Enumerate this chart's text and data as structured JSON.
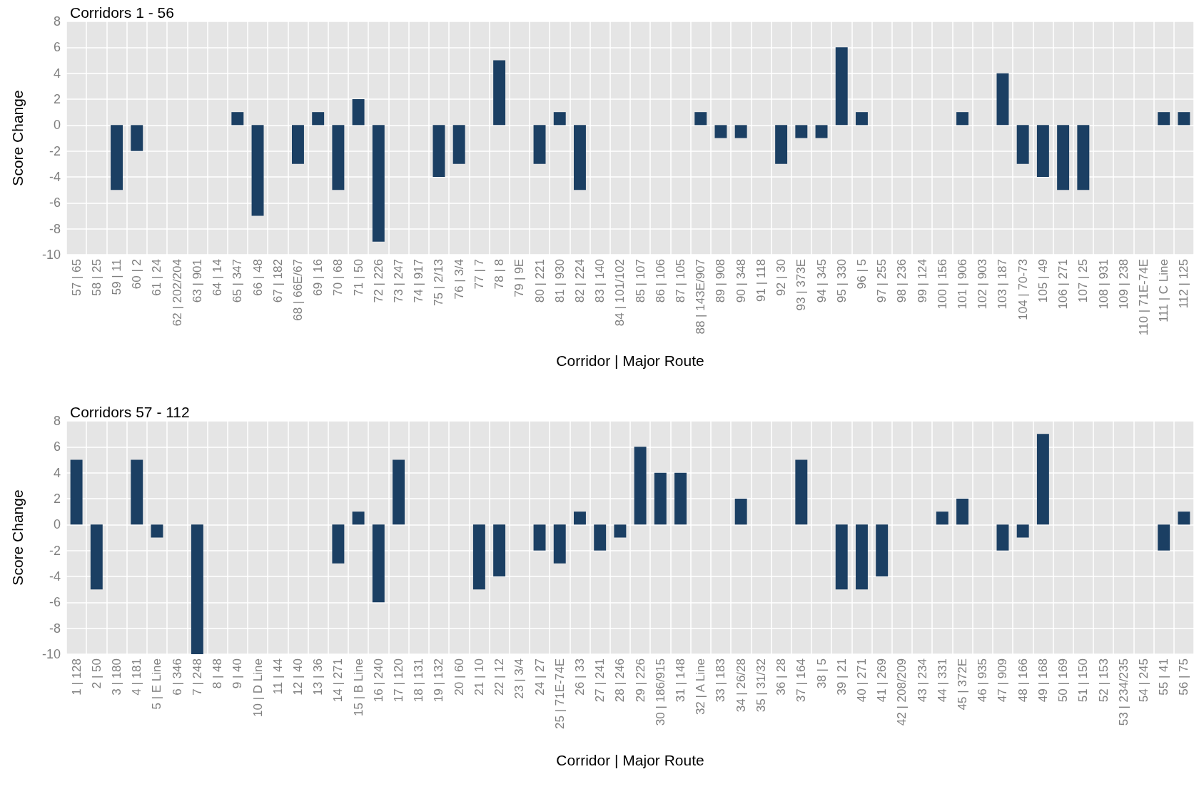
{
  "chart_data": [
    {
      "type": "bar",
      "title": "Corridors 1 - 56",
      "xlabel": "Corridor | Major Route",
      "ylabel": "Score Change",
      "color": "#1b3f63",
      "grid": true,
      "ylim": [
        -10,
        8
      ],
      "yticks": [
        -10,
        -8,
        -6,
        -4,
        -2,
        0,
        2,
        4,
        6,
        8
      ],
      "categories": [
        "57 | 65",
        "58 | 25",
        "59 | 11",
        "60 | 2",
        "61 | 24",
        "62 | 202/204",
        "63 | 901",
        "64 | 14",
        "65 | 347",
        "66 | 48",
        "67 | 182",
        "68 | 66E/67",
        "69 | 16",
        "70 | 68",
        "71 | 50",
        "72 | 226",
        "73 | 247",
        "74 | 917",
        "75 | 2/13",
        "76 | 3/4",
        "77 | 7",
        "78 | 8",
        "79 | 9E",
        "80 | 221",
        "81 | 930",
        "82 | 224",
        "83 | 140",
        "84 | 101/102",
        "85 | 107",
        "86 | 106",
        "87 | 105",
        "88 | 143E/907",
        "89 | 908",
        "90 | 348",
        "91 | 118",
        "92 | 30",
        "93 | 373E",
        "94 | 345",
        "95 | 330",
        "96 | 5",
        "97 | 255",
        "98 | 236",
        "99 | 124",
        "100 | 156",
        "101 | 906",
        "102 | 903",
        "103 | 187",
        "104 | 70-73",
        "105 | 49",
        "106 | 271",
        "107 | 25",
        "108 | 931",
        "109 | 238",
        "110 | 71E-74E",
        "111 | C Line",
        "112 | 125"
      ],
      "values": [
        0,
        0,
        -5,
        -2,
        0,
        0,
        0,
        0,
        1,
        -7,
        0,
        -3,
        1,
        -5,
        2,
        -9,
        0,
        0,
        -4,
        -3,
        0,
        5,
        0,
        -3,
        1,
        -5,
        0,
        0,
        0,
        0,
        0,
        1,
        -1,
        -1,
        0,
        -3,
        -1,
        -1,
        6,
        1,
        0,
        0,
        0,
        0,
        1,
        0,
        4,
        -3,
        -4,
        -5,
        -5,
        0,
        0,
        0,
        1,
        1
      ]
    },
    {
      "type": "bar",
      "title": "Corridors 57 - 112",
      "xlabel": "Corridor | Major Route",
      "ylabel": "Score Change",
      "color": "#1b3f63",
      "grid": true,
      "ylim": [
        -10,
        8
      ],
      "yticks": [
        -10,
        -8,
        -6,
        -4,
        -2,
        0,
        2,
        4,
        6,
        8
      ],
      "categories": [
        "1 | 128",
        "2 | 50",
        "3 | 180",
        "4 | 181",
        "5 | E Line",
        "6 | 346",
        "7 | 248",
        "8 | 48",
        "9 | 40",
        "10 | D Line",
        "11 | 44",
        "12 | 40",
        "13 | 36",
        "14 | 271",
        "15 | B Line",
        "16 | 240",
        "17 | 120",
        "18 | 131",
        "19 | 132",
        "20 | 60",
        "21 | 10",
        "22 | 12",
        "23 | 3/4",
        "24 | 27",
        "25 | 71E-74E",
        "26 | 33",
        "27 | 241",
        "28 | 246",
        "29 | 226",
        "30 | 186/915",
        "31 | 148",
        "32 | A Line",
        "33 | 183",
        "34 | 26/28",
        "35 | 31/32",
        "36 | 28",
        "37 | 164",
        "38 | 5",
        "39 | 21",
        "40 | 271",
        "41 | 269",
        "42 | 208/209",
        "43 | 234",
        "44 | 331",
        "45 | 372E",
        "46 | 935",
        "47 | 909",
        "48 | 166",
        "49 | 168",
        "50 | 169",
        "51 | 150",
        "52 | 153",
        "53 | 234/235",
        "54 | 245",
        "55 | 41",
        "56 | 75"
      ],
      "values": [
        5,
        -5,
        0,
        5,
        -1,
        0,
        -10,
        0,
        0,
        0,
        0,
        0,
        0,
        -3,
        1,
        -6,
        5,
        0,
        0,
        0,
        -5,
        -4,
        0,
        -2,
        -3,
        1,
        -2,
        -1,
        6,
        4,
        4,
        0,
        0,
        2,
        0,
        0,
        5,
        0,
        -5,
        -5,
        -4,
        0,
        0,
        1,
        2,
        0,
        -2,
        -1,
        7,
        0,
        0,
        0,
        0,
        0,
        -2,
        1
      ]
    }
  ]
}
